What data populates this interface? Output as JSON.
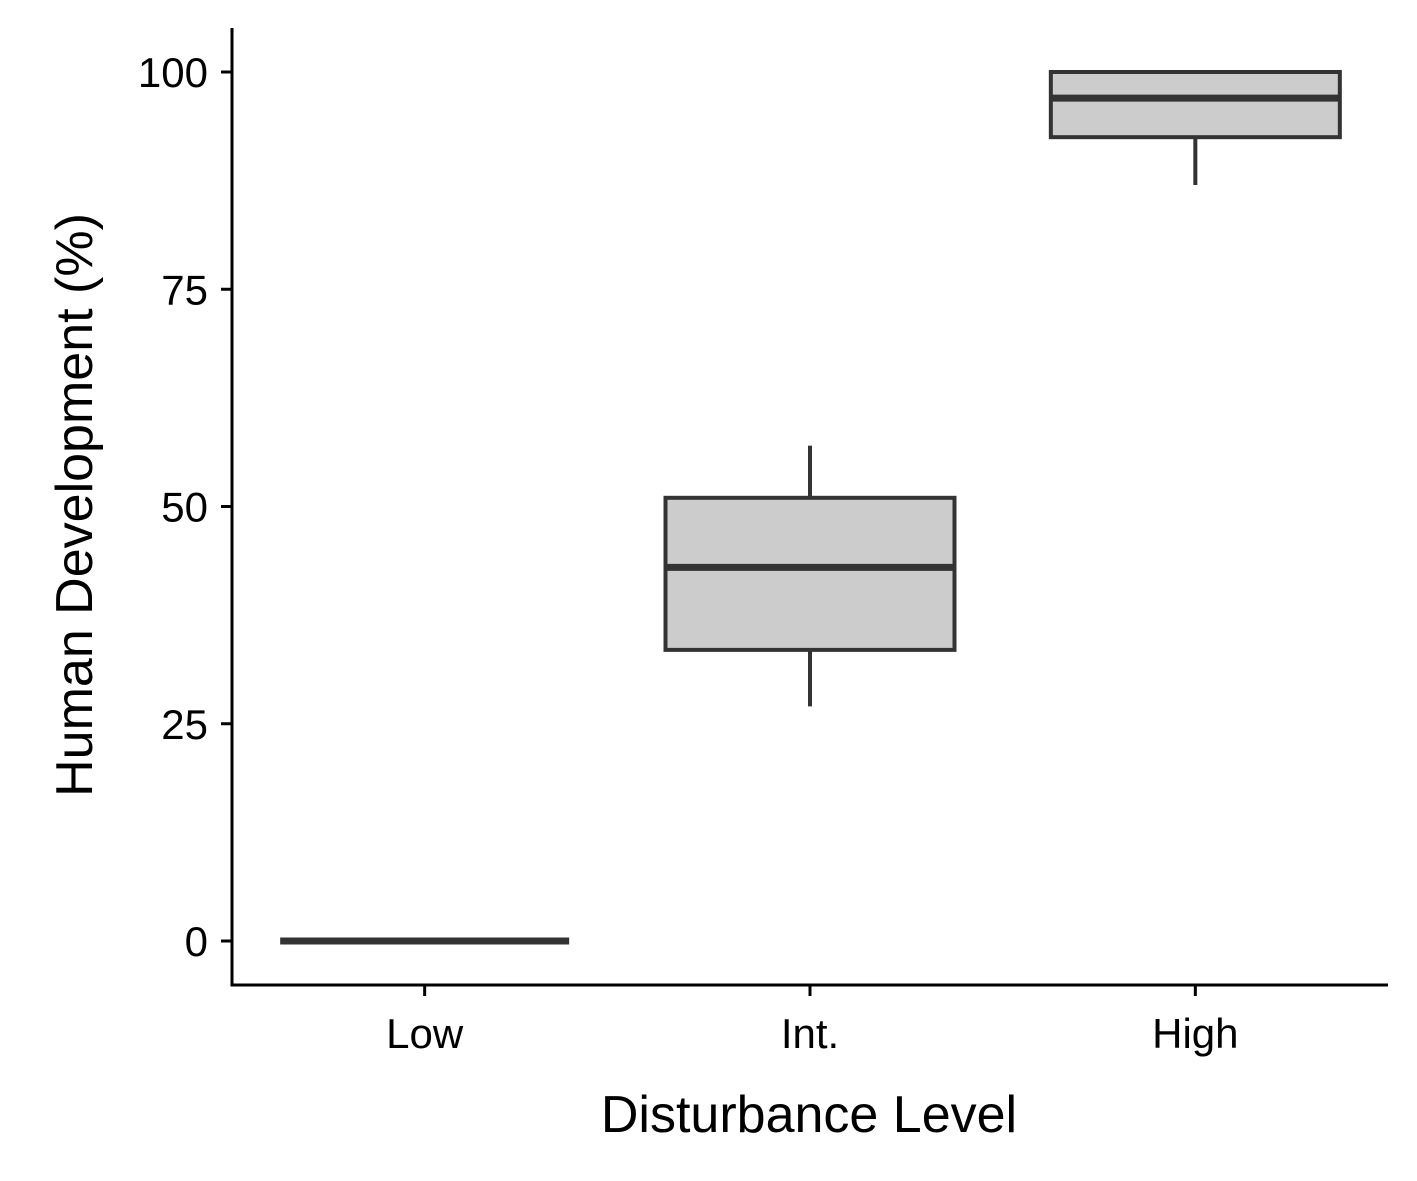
{
  "chart_data": {
    "type": "boxplot",
    "xlabel": "Disturbance Level",
    "ylabel": "Human Development (%)",
    "ylim": [
      -5,
      105
    ],
    "yticks": [
      0,
      25,
      50,
      75,
      100
    ],
    "ytick_labels": [
      "0",
      "25",
      "50",
      "75",
      "100"
    ],
    "categories": [
      "Low",
      "Int.",
      "High"
    ],
    "boxes": [
      {
        "category": "Low",
        "min": 0,
        "q1": 0,
        "median": 0,
        "q3": 0,
        "max": 0
      },
      {
        "category": "Int.",
        "min": 27,
        "q1": 33.5,
        "median": 43,
        "q3": 51,
        "max": 57
      },
      {
        "category": "High",
        "min": 87,
        "q1": 92.5,
        "median": 97,
        "q3": 100,
        "max": 100
      }
    ],
    "grid": false,
    "colors": {
      "box_fill": "#cccccc",
      "box_line": "#333333",
      "axis": "#000000"
    }
  }
}
